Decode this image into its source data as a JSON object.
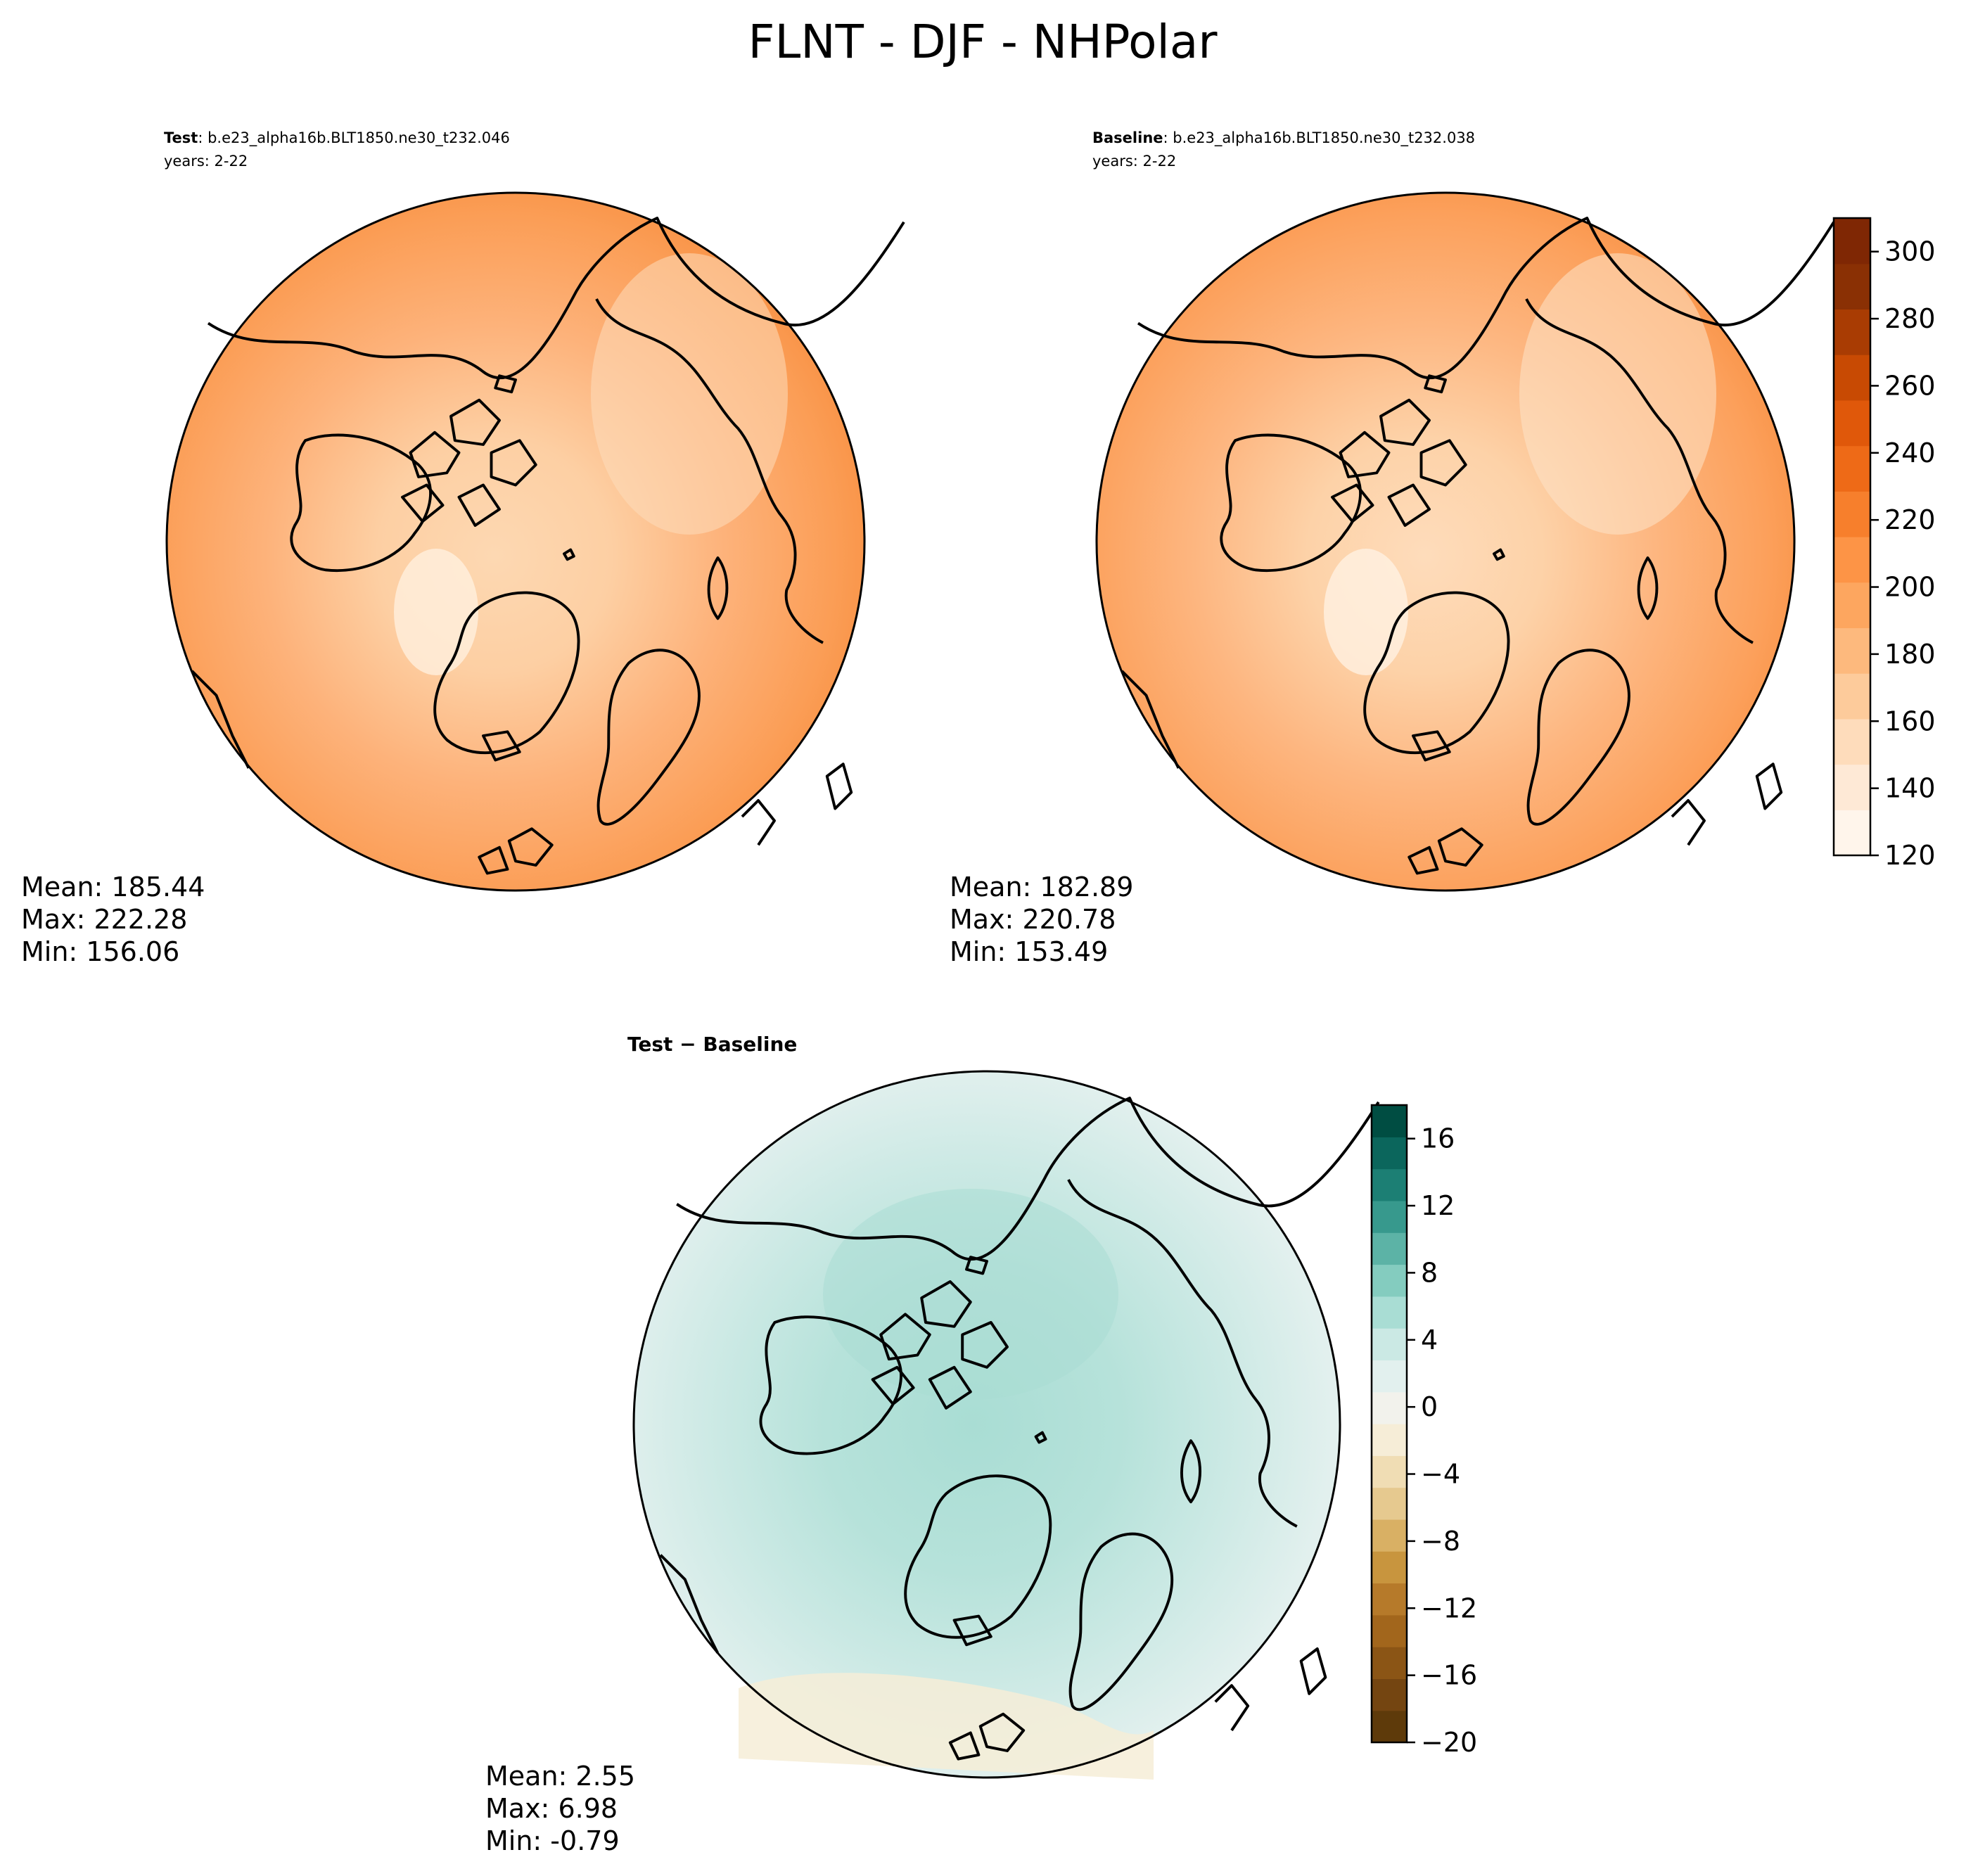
{
  "figure": {
    "title": "FLNT - DJF - NHPolar"
  },
  "panels": {
    "test": {
      "label_bold": "Test",
      "label_rest": ": b.e23_alpha16b.BLT1850.ne30_t232.046",
      "years": "years: 2-22",
      "stats": {
        "mean": "Mean: 185.44",
        "max": "Max: 222.28",
        "min": "Min: 156.06"
      }
    },
    "baseline": {
      "label_bold": "Baseline",
      "label_rest": ": b.e23_alpha16b.BLT1850.ne30_t232.038",
      "years": "years: 2-22",
      "stats": {
        "mean": "Mean: 182.89",
        "max": "Max: 220.78",
        "min": "Min: 153.49"
      }
    },
    "diff": {
      "label_bold": "Test − Baseline",
      "stats": {
        "mean": "Mean:  2.55",
        "max": "Max:  6.98",
        "min": "Min: -0.79"
      }
    }
  },
  "colorbars": {
    "main": {
      "range": [
        120,
        310
      ],
      "tick_values": [
        120,
        140,
        160,
        180,
        200,
        220,
        240,
        260,
        280,
        300
      ],
      "tick_labels": [
        "120",
        "140",
        "160",
        "180",
        "200",
        "220",
        "240",
        "260",
        "280",
        "300"
      ],
      "colors": [
        "#fff5eb",
        "#fee9d6",
        "#fedcbb",
        "#fdcb9b",
        "#fdb97d",
        "#fda65f",
        "#fd9446",
        "#f77f2c",
        "#ee6a17",
        "#e0580a",
        "#c84a03",
        "#a93c03",
        "#8a3004",
        "#7f2704"
      ]
    },
    "diff": {
      "range": [
        -20,
        18
      ],
      "tick_values": [
        -20,
        -16,
        -12,
        -8,
        -4,
        0,
        4,
        8,
        12,
        16
      ],
      "tick_labels": [
        "−20",
        "−16",
        "−12",
        "−8",
        "−4",
        "0",
        "4",
        "8",
        "12",
        "16"
      ],
      "colors": [
        "#5e3a0a",
        "#744511",
        "#8b5515",
        "#a2661c",
        "#b67a2a",
        "#c8953e",
        "#d9b064",
        "#e6c98f",
        "#f0ddb4",
        "#f6edd7",
        "#f2f2ec",
        "#e2f0ee",
        "#cbe9e4",
        "#a9ddd4",
        "#84ccbf",
        "#5cb3a6",
        "#37998d",
        "#1c7f74",
        "#0b665c",
        "#004d42"
      ]
    }
  }
}
